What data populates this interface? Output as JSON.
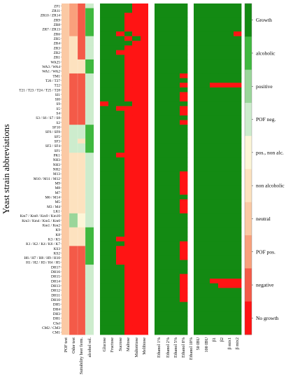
{
  "chart_data": {
    "type": "heatmap",
    "ylabel": "Yeast strain abbreviations",
    "colors": {
      "growth": "#138a13",
      "no_growth": "#ff1414",
      "alcoholic": "#3fb83f",
      "positive": "#9ad69a",
      "pof_neg": "#cdeccd",
      "pos_non_alc": "#fdf6d8",
      "non_alcoholic": "#fde2bf",
      "neutral": "#fbc9a4",
      "pof_pos": "#f9a07c",
      "negative": "#f45a48"
    },
    "colorbar_labels": [
      "Growth",
      "alcoholic",
      "positive",
      "POF neg.",
      "pos., non alc.",
      "non alcoholic",
      "neutral",
      "POF pos.",
      "negative",
      "No growth"
    ],
    "rows": [
      "ZF1",
      "ZR11",
      "ZR10 / ZR14",
      "ZR9",
      "ZR8",
      "ZR7 / ZR13",
      "ZR6",
      "ZR5",
      "ZR4",
      "ZR3",
      "ZR2",
      "ZR1",
      "WA25",
      "WA3 / WA4",
      "WA1 / WA2",
      "TM1",
      "T26 / T27",
      "T22",
      "T21 / T23 / T24 / T25 / T28",
      "SI1",
      "SI0",
      "S9",
      "S5",
      "S4",
      "S3 / S6 / S7 / S8",
      "S2",
      "SF10",
      "SF6 / SF8",
      "SF5",
      "SF3",
      "SF2 / SF4",
      "SF1",
      "PK1",
      "NH3",
      "NH3",
      "NH2",
      "M13",
      "M10 / M11 / M12",
      "M9",
      "M8",
      "M7",
      "M6 / M14",
      "M5",
      "M3 / M4",
      "LK1",
      "Km7 / Km8 / Km9 / Km10",
      "Km3 / Km4 / Km5 / Km6",
      "Km1 / Km2",
      "K9",
      "K8",
      "K3 / K5",
      "K1 / K2 / K4 / K6 / K7",
      "KS3",
      "KS2",
      "H6 / H7 / H8 / H9 / H10",
      "H1 / H2 / H3 / H4 / H5",
      "DH17",
      "DH16",
      "DH15",
      "DH14",
      "DH13",
      "DH12",
      "DH11",
      "DH10",
      "DH5",
      "DH4",
      "DH3",
      "DH1",
      "CSel",
      "CM2 / CM3",
      "CM1"
    ],
    "columns": [
      "POF test",
      "Odor test",
      "Suitability beer ferm.",
      "alcohol sol.",
      "Glucose",
      "Fructose",
      "Sucrose",
      "Maltose",
      "Maltotriose",
      "Melibiose",
      "Ethanol 1%",
      "Ethanol 2%",
      "Ethanol 5%",
      "Ethanol 8%",
      "Ethanol 10%",
      "50 IBU",
      "100 IBU",
      "β1",
      "β2",
      "β mix1",
      "β mix2"
    ],
    "values": [
      [
        6,
        7,
        8,
        3,
        0,
        0,
        0,
        0,
        9,
        9,
        0,
        0,
        0,
        0,
        9,
        0,
        0,
        0,
        0,
        0,
        0
      ],
      [
        6,
        7,
        8,
        1,
        0,
        0,
        0,
        0,
        9,
        9,
        0,
        0,
        0,
        0,
        0,
        0,
        0,
        0,
        0,
        0,
        0
      ],
      [
        6,
        7,
        8,
        1,
        0,
        0,
        0,
        9,
        9,
        9,
        0,
        0,
        0,
        0,
        0,
        0,
        0,
        0,
        0,
        0,
        0
      ],
      [
        6,
        7,
        8,
        1,
        0,
        0,
        0,
        9,
        9,
        9,
        0,
        0,
        0,
        0,
        0,
        0,
        0,
        0,
        0,
        0,
        0
      ],
      [
        6,
        7,
        8,
        1,
        0,
        0,
        0,
        9,
        9,
        9,
        0,
        0,
        0,
        0,
        0,
        0,
        0,
        0,
        0,
        0,
        0
      ],
      [
        6,
        7,
        8,
        1,
        0,
        0,
        0,
        9,
        9,
        9,
        0,
        0,
        0,
        0,
        0,
        0,
        0,
        0,
        0,
        0,
        0
      ],
      [
        6,
        7,
        8,
        1,
        0,
        0,
        9,
        0,
        9,
        9,
        0,
        0,
        0,
        0,
        0,
        0,
        0,
        0,
        0,
        0,
        9
      ],
      [
        6,
        5,
        8,
        3,
        0,
        0,
        0,
        9,
        0,
        9,
        0,
        0,
        0,
        0,
        0,
        0,
        0,
        0,
        0,
        0,
        0
      ],
      [
        6,
        5,
        8,
        3,
        0,
        0,
        0,
        0,
        9,
        9,
        0,
        0,
        0,
        0,
        0,
        0,
        0,
        0,
        0,
        0,
        0
      ],
      [
        6,
        5,
        8,
        3,
        0,
        0,
        0,
        9,
        9,
        9,
        0,
        0,
        0,
        0,
        0,
        0,
        0,
        0,
        0,
        0,
        0
      ],
      [
        6,
        5,
        8,
        3,
        0,
        0,
        9,
        9,
        9,
        9,
        0,
        0,
        0,
        0,
        0,
        0,
        0,
        0,
        0,
        0,
        0
      ],
      [
        6,
        5,
        8,
        3,
        0,
        0,
        0,
        9,
        9,
        9,
        0,
        0,
        0,
        0,
        0,
        0,
        0,
        0,
        0,
        0,
        0
      ],
      [
        6,
        5,
        5,
        1,
        0,
        0,
        0,
        9,
        9,
        9,
        0,
        0,
        0,
        0,
        0,
        0,
        0,
        0,
        0,
        0,
        0
      ],
      [
        6,
        5,
        5,
        1,
        0,
        0,
        0,
        9,
        9,
        9,
        0,
        0,
        0,
        0,
        0,
        0,
        0,
        0,
        0,
        0,
        0
      ],
      [
        6,
        5,
        5,
        1,
        0,
        0,
        0,
        9,
        9,
        9,
        0,
        0,
        0,
        0,
        0,
        0,
        0,
        0,
        0,
        0,
        0
      ],
      [
        6,
        8,
        8,
        3,
        0,
        0,
        0,
        9,
        9,
        9,
        0,
        0,
        0,
        9,
        9,
        0,
        0,
        0,
        0,
        0,
        0
      ],
      [
        6,
        8,
        8,
        3,
        0,
        0,
        0,
        9,
        9,
        9,
        0,
        0,
        0,
        0,
        0,
        0,
        0,
        0,
        0,
        0,
        0
      ],
      [
        6,
        8,
        8,
        3,
        0,
        0,
        0,
        9,
        9,
        9,
        0,
        0,
        0,
        9,
        9,
        0,
        0,
        9,
        9,
        9,
        9
      ],
      [
        6,
        8,
        8,
        3,
        0,
        0,
        0,
        9,
        9,
        9,
        0,
        0,
        0,
        0,
        0,
        0,
        0,
        0,
        0,
        0,
        0
      ],
      [
        6,
        8,
        8,
        3,
        0,
        0,
        0,
        9,
        9,
        9,
        0,
        0,
        0,
        9,
        9,
        0,
        0,
        0,
        0,
        0,
        0
      ],
      [
        6,
        8,
        8,
        3,
        0,
        0,
        0,
        9,
        9,
        9,
        0,
        0,
        0,
        9,
        0,
        0,
        0,
        0,
        0,
        0,
        0
      ],
      [
        6,
        8,
        8,
        3,
        9,
        0,
        0,
        0,
        9,
        9,
        0,
        0,
        0,
        0,
        0,
        0,
        0,
        0,
        0,
        0,
        0
      ],
      [
        6,
        8,
        8,
        3,
        0,
        0,
        9,
        9,
        9,
        9,
        0,
        0,
        0,
        9,
        9,
        0,
        0,
        0,
        0,
        0,
        0
      ],
      [
        6,
        8,
        8,
        3,
        0,
        0,
        0,
        9,
        9,
        9,
        0,
        0,
        0,
        9,
        9,
        0,
        0,
        0,
        0,
        0,
        0
      ],
      [
        6,
        8,
        8,
        3,
        0,
        0,
        0,
        9,
        9,
        9,
        0,
        0,
        0,
        0,
        0,
        0,
        0,
        0,
        0,
        0,
        0
      ],
      [
        6,
        8,
        8,
        3,
        0,
        0,
        0,
        9,
        9,
        9,
        0,
        0,
        0,
        9,
        9,
        0,
        0,
        0,
        0,
        0,
        0
      ],
      [
        6,
        3,
        3,
        1,
        0,
        0,
        0,
        9,
        9,
        9,
        0,
        0,
        0,
        0,
        9,
        0,
        0,
        0,
        0,
        0,
        0
      ],
      [
        6,
        3,
        3,
        1,
        0,
        0,
        0,
        9,
        9,
        9,
        0,
        0,
        0,
        0,
        9,
        0,
        0,
        0,
        0,
        0,
        0
      ],
      [
        6,
        3,
        3,
        1,
        0,
        0,
        0,
        9,
        9,
        9,
        0,
        0,
        0,
        0,
        9,
        0,
        0,
        0,
        0,
        0,
        0
      ],
      [
        6,
        3,
        5,
        1,
        0,
        0,
        0,
        9,
        9,
        9,
        0,
        0,
        0,
        0,
        9,
        0,
        0,
        0,
        0,
        0,
        0
      ],
      [
        6,
        3,
        3,
        1,
        0,
        0,
        0,
        9,
        9,
        9,
        0,
        0,
        0,
        0,
        9,
        0,
        0,
        0,
        0,
        0,
        0
      ],
      [
        6,
        3,
        3,
        1,
        0,
        0,
        0,
        9,
        9,
        9,
        0,
        0,
        0,
        0,
        9,
        0,
        0,
        0,
        0,
        0,
        0
      ],
      [
        6,
        5,
        5,
        3,
        0,
        0,
        9,
        9,
        9,
        9,
        0,
        0,
        0,
        0,
        9,
        0,
        0,
        0,
        0,
        0,
        0
      ],
      [
        6,
        5,
        5,
        3,
        0,
        0,
        0,
        9,
        9,
        9,
        0,
        0,
        0,
        0,
        0,
        0,
        0,
        0,
        0,
        0,
        0
      ],
      [
        6,
        5,
        5,
        3,
        0,
        0,
        0,
        9,
        9,
        9,
        0,
        0,
        0,
        0,
        0,
        0,
        0,
        0,
        0,
        0,
        0
      ],
      [
        6,
        5,
        5,
        3,
        0,
        0,
        0,
        9,
        9,
        9,
        0,
        0,
        0,
        0,
        0,
        0,
        0,
        0,
        0,
        0,
        0
      ],
      [
        6,
        5,
        5,
        3,
        0,
        0,
        0,
        9,
        9,
        9,
        0,
        0,
        0,
        9,
        9,
        0,
        0,
        0,
        0,
        0,
        0
      ],
      [
        6,
        5,
        5,
        3,
        0,
        0,
        0,
        9,
        9,
        9,
        0,
        0,
        0,
        9,
        9,
        0,
        0,
        0,
        0,
        0,
        0
      ],
      [
        6,
        5,
        5,
        3,
        0,
        0,
        0,
        9,
        9,
        9,
        0,
        0,
        0,
        9,
        9,
        0,
        0,
        0,
        0,
        0,
        0
      ],
      [
        6,
        5,
        5,
        3,
        0,
        0,
        0,
        9,
        9,
        9,
        0,
        0,
        0,
        9,
        9,
        0,
        0,
        0,
        0,
        0,
        0
      ],
      [
        6,
        5,
        5,
        3,
        0,
        0,
        0,
        9,
        9,
        9,
        0,
        0,
        0,
        9,
        9,
        0,
        0,
        0,
        0,
        0,
        0
      ],
      [
        6,
        5,
        5,
        3,
        0,
        0,
        0,
        9,
        9,
        9,
        0,
        0,
        0,
        0,
        9,
        0,
        0,
        0,
        0,
        0,
        0
      ],
      [
        6,
        5,
        5,
        3,
        0,
        0,
        0,
        9,
        9,
        9,
        0,
        0,
        0,
        9,
        9,
        0,
        0,
        0,
        0,
        0,
        0
      ],
      [
        6,
        5,
        5,
        3,
        0,
        0,
        0,
        9,
        9,
        9,
        0,
        0,
        0,
        9,
        9,
        0,
        0,
        0,
        0,
        0,
        0
      ],
      [
        6,
        5,
        5,
        3,
        0,
        0,
        0,
        9,
        9,
        9,
        0,
        0,
        0,
        9,
        9,
        0,
        0,
        0,
        0,
        0,
        0
      ],
      [
        6,
        2,
        4,
        3,
        0,
        0,
        0,
        9,
        9,
        9,
        0,
        0,
        0,
        0,
        9,
        0,
        0,
        0,
        0,
        0,
        0
      ],
      [
        6,
        2,
        4,
        3,
        0,
        0,
        0,
        9,
        9,
        9,
        0,
        0,
        0,
        0,
        9,
        0,
        0,
        0,
        0,
        0,
        0
      ],
      [
        6,
        2,
        4,
        3,
        0,
        0,
        0,
        9,
        9,
        9,
        0,
        0,
        0,
        0,
        9,
        0,
        0,
        0,
        0,
        0,
        0
      ],
      [
        6,
        5,
        5,
        1,
        0,
        0,
        0,
        9,
        9,
        9,
        0,
        0,
        0,
        0,
        9,
        0,
        0,
        0,
        0,
        0,
        0
      ],
      [
        6,
        5,
        5,
        1,
        0,
        0,
        0,
        9,
        9,
        9,
        0,
        0,
        0,
        0,
        9,
        0,
        0,
        0,
        0,
        0,
        0
      ],
      [
        6,
        5,
        5,
        1,
        0,
        0,
        9,
        9,
        9,
        9,
        0,
        0,
        0,
        0,
        9,
        0,
        0,
        0,
        0,
        0,
        0
      ],
      [
        6,
        5,
        5,
        1,
        0,
        0,
        0,
        9,
        9,
        9,
        0,
        0,
        0,
        9,
        9,
        0,
        0,
        0,
        0,
        0,
        0
      ],
      [
        6,
        8,
        8,
        1,
        0,
        0,
        9,
        9,
        9,
        9,
        0,
        0,
        0,
        9,
        9,
        0,
        0,
        0,
        0,
        0,
        0
      ],
      [
        6,
        8,
        8,
        1,
        0,
        0,
        9,
        9,
        9,
        9,
        0,
        0,
        0,
        9,
        9,
        0,
        0,
        0,
        0,
        0,
        0
      ],
      [
        6,
        8,
        8,
        1,
        0,
        0,
        9,
        9,
        9,
        9,
        0,
        0,
        0,
        9,
        9,
        0,
        0,
        0,
        0,
        0,
        0
      ],
      [
        6,
        8,
        8,
        1,
        0,
        0,
        9,
        9,
        9,
        9,
        0,
        0,
        0,
        0,
        0,
        0,
        0,
        0,
        0,
        0,
        0
      ],
      [
        6,
        8,
        8,
        3,
        0,
        0,
        0,
        9,
        9,
        9,
        0,
        0,
        0,
        0,
        9,
        0,
        0,
        0,
        0,
        0,
        0
      ],
      [
        6,
        8,
        8,
        3,
        0,
        0,
        0,
        9,
        9,
        9,
        0,
        0,
        0,
        0,
        9,
        0,
        0,
        0,
        0,
        0,
        0
      ],
      [
        6,
        8,
        8,
        3,
        0,
        0,
        0,
        9,
        9,
        9,
        0,
        0,
        0,
        9,
        9,
        0,
        0,
        0,
        0,
        0,
        0
      ],
      [
        6,
        8,
        8,
        3,
        0,
        0,
        0,
        9,
        9,
        9,
        0,
        0,
        0,
        9,
        9,
        0,
        0,
        9,
        9,
        9,
        9
      ],
      [
        6,
        8,
        8,
        3,
        0,
        0,
        0,
        9,
        9,
        9,
        0,
        0,
        0,
        9,
        9,
        0,
        0,
        0,
        9,
        9,
        9
      ],
      [
        6,
        8,
        8,
        3,
        0,
        0,
        0,
        9,
        9,
        9,
        0,
        0,
        0,
        9,
        9,
        0,
        0,
        0,
        0,
        0,
        0
      ],
      [
        6,
        8,
        8,
        3,
        0,
        0,
        0,
        9,
        9,
        9,
        0,
        0,
        0,
        9,
        9,
        0,
        0,
        0,
        0,
        0,
        0
      ],
      [
        6,
        8,
        8,
        3,
        0,
        0,
        0,
        9,
        9,
        9,
        0,
        0,
        0,
        9,
        9,
        0,
        0,
        0,
        0,
        0,
        0
      ],
      [
        6,
        8,
        8,
        3,
        0,
        0,
        0,
        9,
        9,
        9,
        0,
        0,
        0,
        0,
        9,
        0,
        0,
        0,
        0,
        0,
        0
      ],
      [
        6,
        8,
        8,
        3,
        0,
        0,
        0,
        9,
        9,
        9,
        0,
        0,
        0,
        0,
        9,
        0,
        0,
        0,
        0,
        0,
        0
      ],
      [
        6,
        8,
        8,
        3,
        0,
        0,
        0,
        9,
        9,
        9,
        0,
        0,
        0,
        0,
        9,
        0,
        0,
        0,
        0,
        0,
        0
      ],
      [
        6,
        8,
        8,
        3,
        0,
        0,
        0,
        9,
        9,
        9,
        0,
        0,
        0,
        0,
        9,
        0,
        0,
        0,
        0,
        0,
        0
      ],
      [
        6,
        8,
        8,
        3,
        0,
        0,
        0,
        9,
        9,
        9,
        0,
        0,
        0,
        0,
        9,
        0,
        0,
        0,
        0,
        0,
        0
      ],
      [
        6,
        8,
        8,
        3,
        0,
        0,
        0,
        9,
        9,
        9,
        0,
        0,
        0,
        0,
        9,
        0,
        0,
        0,
        0,
        0,
        0
      ],
      [
        6,
        8,
        8,
        3,
        0,
        0,
        0,
        9,
        9,
        9,
        0,
        0,
        0,
        0,
        9,
        0,
        0,
        0,
        0,
        0,
        0
      ]
    ]
  }
}
